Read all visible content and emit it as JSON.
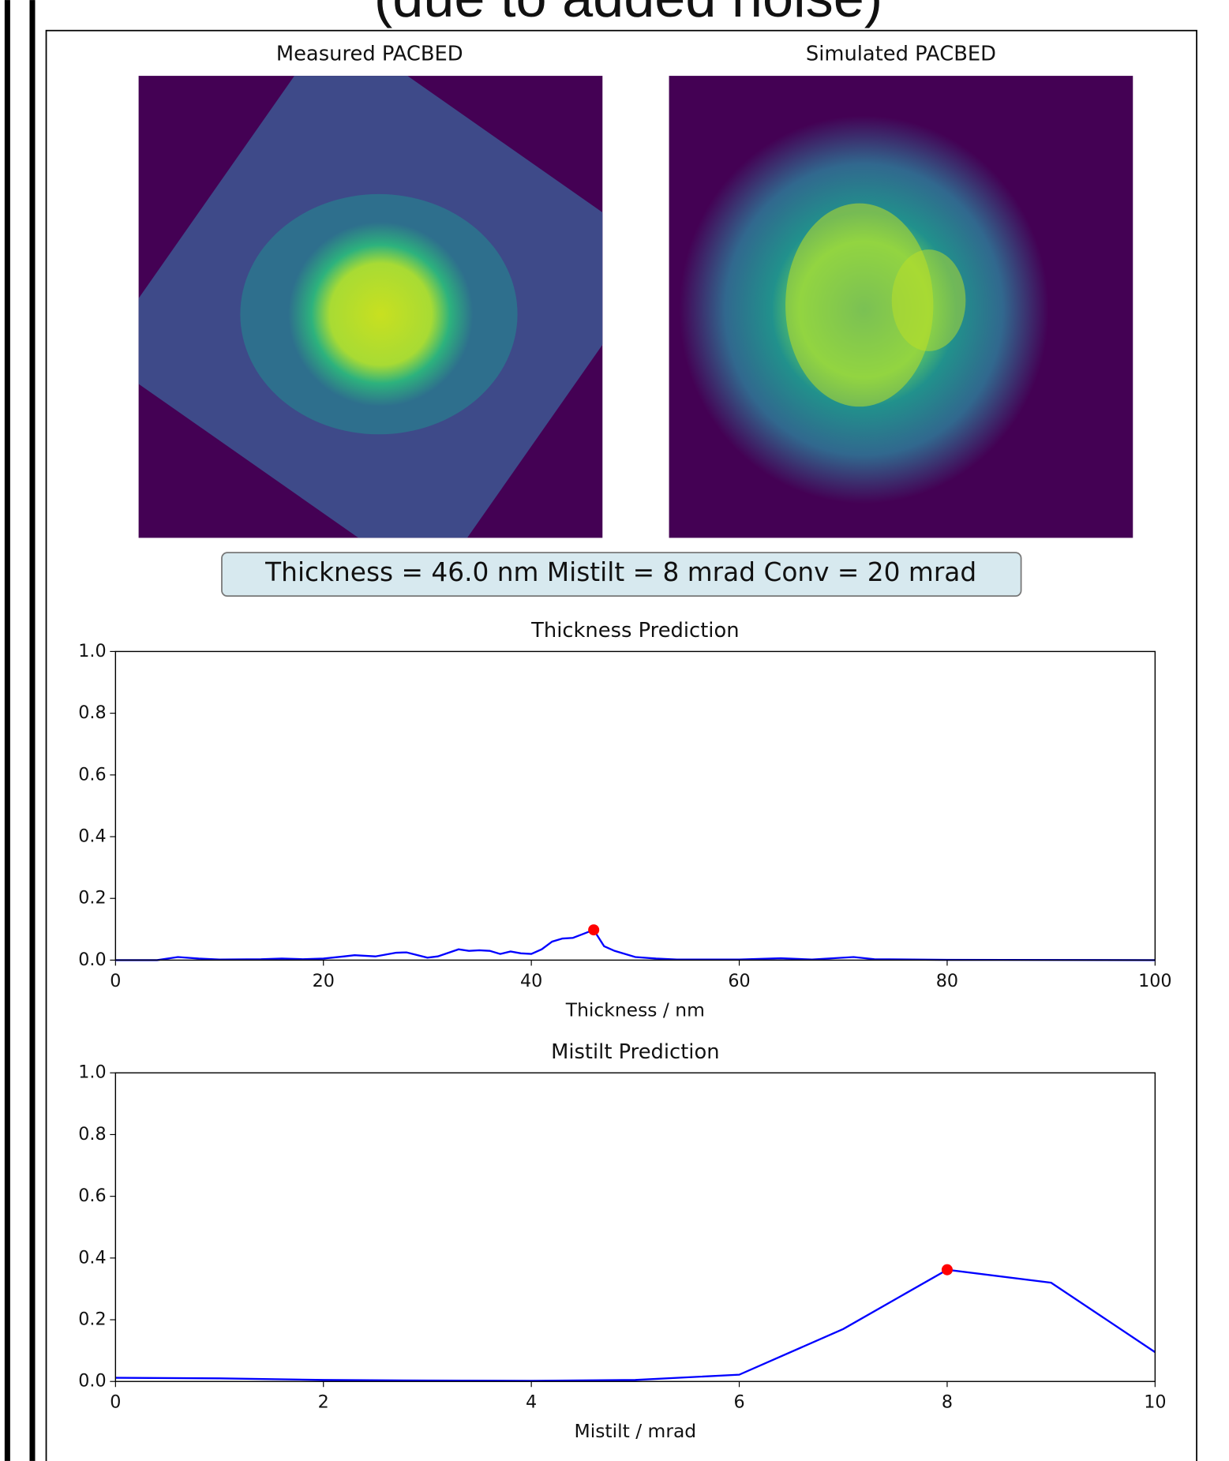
{
  "header_text": "(due to added noise)",
  "images": [
    {
      "title": "Measured PACBED"
    },
    {
      "title": "Simulated PACBED"
    }
  ],
  "annotation": "Thickness = 46.0 nm  Mistilt = 8 mrad  Conv = 20 mrad",
  "chart_data": [
    {
      "type": "line",
      "title": "Thickness Prediction",
      "x_label": "Thickness / nm",
      "x": [
        0,
        4,
        6,
        8,
        10,
        14,
        16,
        18,
        20,
        22,
        23,
        25,
        27,
        28,
        30,
        31,
        33,
        34,
        35,
        36,
        37,
        38,
        39,
        40,
        41,
        42,
        43,
        44,
        45,
        46,
        47,
        48,
        50,
        52,
        54,
        60,
        64,
        67,
        71,
        73,
        80,
        100
      ],
      "series": [
        {
          "color": "#0000ff",
          "values": [
            0,
            0,
            0.01,
            0.005,
            0.002,
            0.003,
            0.005,
            0.003,
            0.005,
            0.012,
            0.016,
            0.012,
            0.024,
            0.025,
            0.008,
            0.012,
            0.035,
            0.03,
            0.032,
            0.03,
            0.02,
            0.028,
            0.022,
            0.02,
            0.035,
            0.06,
            0.07,
            0.072,
            0.085,
            0.098,
            0.045,
            0.03,
            0.01,
            0.005,
            0.002,
            0.002,
            0.006,
            0.002,
            0.01,
            0.003,
            0.001,
            0
          ]
        }
      ],
      "highlight_point": {
        "x": 46,
        "y": 0.098,
        "color": "#ff0000"
      },
      "xlim": [
        0,
        100
      ],
      "ylim": [
        0,
        1
      ],
      "xticks": [
        0,
        20,
        40,
        60,
        80,
        100
      ],
      "yticks": [
        {
          "value": 0,
          "label": "0.0"
        },
        0.2,
        0.4,
        0.6,
        0.8,
        {
          "value": 1,
          "label": "1.0"
        }
      ]
    },
    {
      "type": "line",
      "title": "Mistilt Prediction",
      "x_label": "Mistilt / mrad",
      "x": [
        0,
        1,
        2,
        3,
        4,
        5,
        6,
        7,
        8,
        9,
        10
      ],
      "series": [
        {
          "color": "#0000ff",
          "values": [
            0.012,
            0.01,
            0.005,
            0.003,
            0.002,
            0.005,
            0.022,
            0.17,
            0.362,
            0.32,
            0.095
          ]
        }
      ],
      "highlight_point": {
        "x": 8,
        "y": 0.362,
        "color": "#ff0000"
      },
      "xlim": [
        0,
        10
      ],
      "ylim": [
        0,
        1
      ],
      "xticks": [
        0,
        2,
        4,
        6,
        8,
        10
      ],
      "yticks": [
        {
          "value": 0,
          "label": "0.0"
        },
        0.2,
        0.4,
        0.6,
        0.8,
        {
          "value": 1,
          "label": "1.0"
        }
      ]
    }
  ]
}
